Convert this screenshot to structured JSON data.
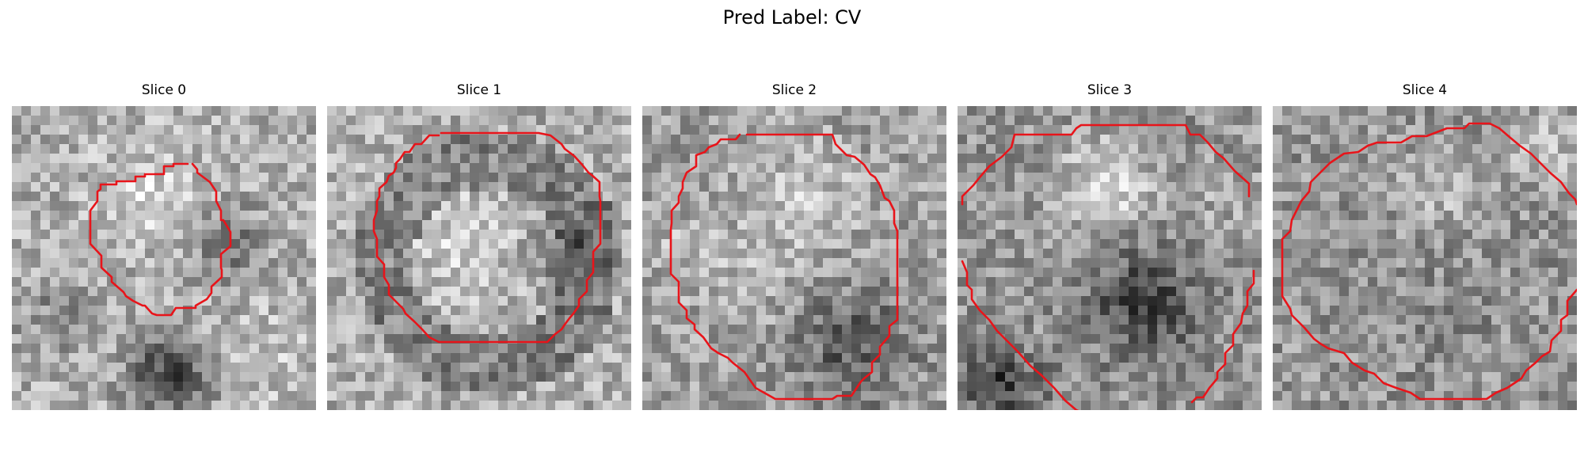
{
  "figure": {
    "suptitle": "Pred Label: CV",
    "contour_color": "#e8141a",
    "colormap": "grayscale",
    "slices": [
      {
        "title": "Slice 0"
      },
      {
        "title": "Slice 1"
      },
      {
        "title": "Slice 2"
      },
      {
        "title": "Slice 3"
      },
      {
        "title": "Slice 4"
      }
    ]
  }
}
